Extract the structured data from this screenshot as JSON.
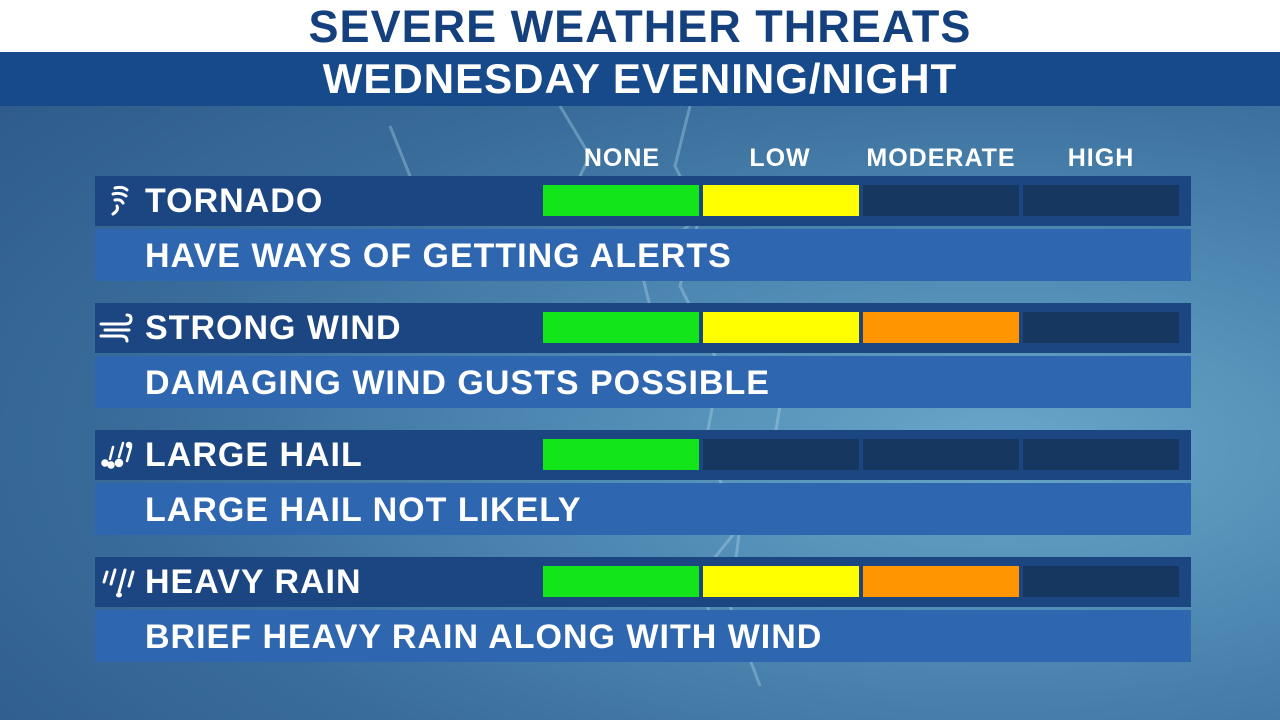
{
  "header": {
    "title": "SEVERE WEATHER THREATS",
    "subtitle": "WEDNESDAY EVENING/NIGHT"
  },
  "levels": [
    "NONE",
    "LOW",
    "MODERATE",
    "HIGH"
  ],
  "colors": {
    "none": "#12e51a",
    "low": "#ffff00",
    "moderate": "#ff9500",
    "empty": "#163760"
  },
  "threats": [
    {
      "name": "TORNADO",
      "icon": "tornado-icon",
      "description": "HAVE WAYS OF GETTING ALERTS",
      "level": 2
    },
    {
      "name": "STRONG WIND",
      "icon": "wind-icon",
      "description": "DAMAGING WIND GUSTS POSSIBLE",
      "level": 3
    },
    {
      "name": "LARGE HAIL",
      "icon": "hail-icon",
      "description": "LARGE HAIL NOT LIKELY",
      "level": 1
    },
    {
      "name": "HEAVY RAIN",
      "icon": "rain-icon",
      "description": "BRIEF HEAVY RAIN ALONG WITH WIND",
      "level": 3
    }
  ]
}
